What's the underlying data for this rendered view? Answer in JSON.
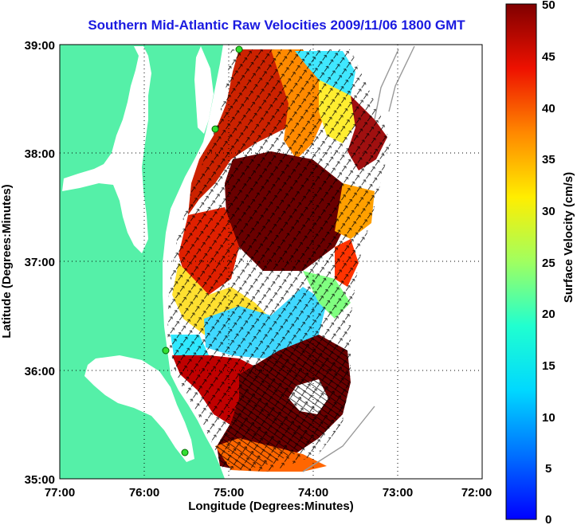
{
  "title": "Southern Mid-Atlantic Raw Velocities 2009/11/06 1800 GMT",
  "x_axis": {
    "label": "Longitude (Degrees:Minutes)",
    "ticks": [
      "77:00",
      "76:00",
      "75:00",
      "74:00",
      "73:00",
      "72:00"
    ]
  },
  "y_axis": {
    "label": "Latitude (Degrees:Minutes)",
    "ticks": [
      "39:00",
      "38:00",
      "37:00",
      "36:00",
      "35:00"
    ]
  },
  "colorbar": {
    "label": "Surface Velocity (cm/s)",
    "ticks": [
      "50",
      "45",
      "40",
      "35",
      "30",
      "25",
      "20",
      "15",
      "10",
      "5",
      "0"
    ],
    "range": [
      0,
      50
    ],
    "colormap": "jet"
  },
  "colors": {
    "land": "#55f0a8",
    "water": "#ffffff",
    "title": "#1a1ae0",
    "contour": "#999999"
  },
  "chart_data": {
    "type": "heatmap",
    "xlim": [
      -77,
      -72
    ],
    "ylim": [
      35,
      39
    ],
    "grid": true,
    "units": "cm/s",
    "value_range": [
      0,
      50
    ]
  }
}
